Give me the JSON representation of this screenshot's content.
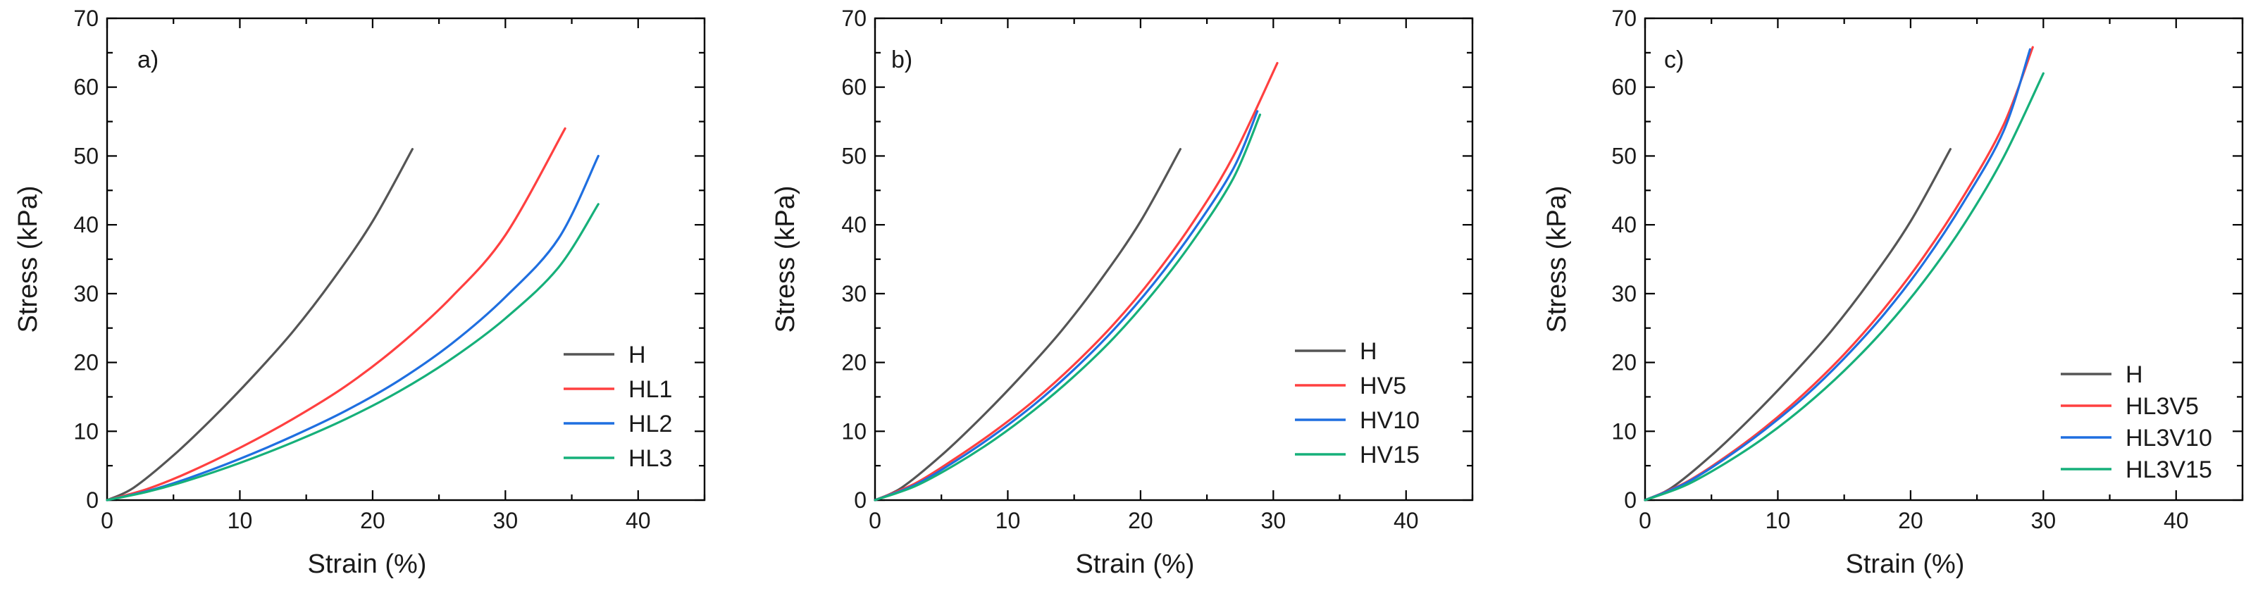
{
  "chart_data": [
    {
      "type": "line",
      "panel_label": "a)",
      "xlabel": "Strain (%)",
      "ylabel": "Stress (kPa)",
      "xlim": [
        0,
        45
      ],
      "ylim": [
        0,
        70
      ],
      "xticks": [
        0,
        10,
        20,
        30,
        40
      ],
      "yticks": [
        0,
        10,
        20,
        30,
        40,
        50,
        60,
        70
      ],
      "legend_position": "bottom-right",
      "series": [
        {
          "name": "H",
          "color": "#555555",
          "x": [
            0,
            2,
            5,
            8,
            11,
            14,
            17,
            20,
            23
          ],
          "y": [
            0,
            1.8,
            6.5,
            12.0,
            18.0,
            24.5,
            32.0,
            40.5,
            51.0
          ]
        },
        {
          "name": "HL1",
          "color": "#ff4040",
          "x": [
            0,
            3,
            6,
            10,
            14,
            18,
            22,
            26,
            30,
            34.5
          ],
          "y": [
            0,
            1.6,
            3.9,
            7.6,
            11.8,
            16.6,
            22.5,
            29.6,
            38.5,
            54.0
          ]
        },
        {
          "name": "HL2",
          "color": "#1f6fe0",
          "x": [
            0,
            3,
            6,
            10,
            14,
            18,
            22,
            26,
            30,
            34,
            37
          ],
          "y": [
            0,
            1.3,
            3.1,
            6.0,
            9.3,
            13.0,
            17.4,
            22.8,
            29.5,
            38.0,
            50.0
          ]
        },
        {
          "name": "HL3",
          "color": "#16b07a",
          "x": [
            0,
            3,
            6,
            10,
            14,
            18,
            22,
            26,
            30,
            34,
            37
          ],
          "y": [
            0,
            1.2,
            2.8,
            5.4,
            8.4,
            11.8,
            15.8,
            20.6,
            26.4,
            33.8,
            43.0
          ]
        }
      ]
    },
    {
      "type": "line",
      "panel_label": "b)",
      "xlabel": "Strain (%)",
      "ylabel": "Stress (kPa)",
      "xlim": [
        0,
        45
      ],
      "ylim": [
        0,
        70
      ],
      "xticks": [
        0,
        10,
        20,
        30,
        40
      ],
      "yticks": [
        0,
        10,
        20,
        30,
        40,
        50,
        60,
        70
      ],
      "legend_position": "bottom-right",
      "series": [
        {
          "name": "H",
          "color": "#555555",
          "x": [
            0,
            2,
            5,
            8,
            11,
            14,
            17,
            20,
            23
          ],
          "y": [
            0,
            1.8,
            6.5,
            12.0,
            18.0,
            24.5,
            32.0,
            40.5,
            51.0
          ]
        },
        {
          "name": "HV5",
          "color": "#ff4040",
          "x": [
            0,
            3,
            6,
            9,
            12,
            15,
            18,
            21,
            24,
            27,
            30.3
          ],
          "y": [
            0,
            2.4,
            6.0,
            10.0,
            14.5,
            19.7,
            25.6,
            32.5,
            40.5,
            50.0,
            63.5
          ]
        },
        {
          "name": "HV10",
          "color": "#1f6fe0",
          "x": [
            0,
            3,
            6,
            9,
            12,
            15,
            18,
            21,
            24,
            27,
            28.8
          ],
          "y": [
            0,
            2.2,
            5.6,
            9.5,
            13.9,
            19.0,
            24.8,
            31.5,
            39.2,
            48.2,
            56.5
          ]
        },
        {
          "name": "HV15",
          "color": "#16b07a",
          "x": [
            0,
            3,
            6,
            9,
            12,
            15,
            18,
            21,
            24,
            27,
            29
          ],
          "y": [
            0,
            2.0,
            5.1,
            8.8,
            13.1,
            18.0,
            23.6,
            30.2,
            37.8,
            46.8,
            56.0
          ]
        }
      ]
    },
    {
      "type": "line",
      "panel_label": "c)",
      "xlabel": "Strain (%)",
      "ylabel": "Stress (kPa)",
      "xlim": [
        0,
        45
      ],
      "ylim": [
        0,
        70
      ],
      "xticks": [
        0,
        10,
        20,
        30,
        40
      ],
      "yticks": [
        0,
        10,
        20,
        30,
        40,
        50,
        60,
        70
      ],
      "legend_position": "bottom-right",
      "series": [
        {
          "name": "H",
          "color": "#555555",
          "x": [
            0,
            2,
            5,
            8,
            11,
            14,
            17,
            20,
            23
          ],
          "y": [
            0,
            1.8,
            6.5,
            12.0,
            18.0,
            24.5,
            32.0,
            40.5,
            51.0
          ]
        },
        {
          "name": "HL3V5",
          "color": "#ff4040",
          "x": [
            0,
            3,
            6,
            9,
            12,
            15,
            18,
            21,
            24,
            27,
            29.2
          ],
          "y": [
            0,
            2.5,
            6.2,
            10.5,
            15.5,
            21.2,
            27.8,
            35.4,
            44.2,
            54.5,
            65.8
          ]
        },
        {
          "name": "HL3V10",
          "color": "#1f6fe0",
          "x": [
            0,
            3,
            6,
            9,
            12,
            15,
            18,
            21,
            24,
            27,
            29
          ],
          "y": [
            0,
            2.4,
            6.0,
            10.2,
            15.0,
            20.6,
            27.0,
            34.5,
            43.3,
            53.6,
            65.5
          ]
        },
        {
          "name": "HL3V15",
          "color": "#16b07a",
          "x": [
            0,
            3,
            6,
            9,
            12,
            15,
            18,
            21,
            24,
            27,
            30
          ],
          "y": [
            0,
            2.1,
            5.3,
            9.1,
            13.6,
            18.8,
            24.8,
            31.8,
            40.0,
            49.8,
            62.0
          ]
        }
      ]
    }
  ]
}
